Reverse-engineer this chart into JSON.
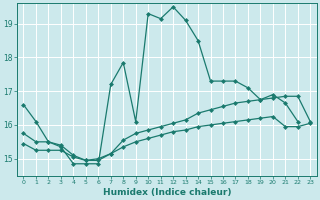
{
  "xlabel": "Humidex (Indice chaleur)",
  "bg_color": "#cce9ec",
  "grid_color": "#ffffff",
  "line_color": "#1a7a6e",
  "xlim": [
    -0.5,
    23.5
  ],
  "ylim": [
    14.5,
    19.6
  ],
  "yticks": [
    15,
    16,
    17,
    18,
    19
  ],
  "xticks": [
    0,
    1,
    2,
    3,
    4,
    5,
    6,
    7,
    8,
    9,
    10,
    11,
    12,
    13,
    14,
    15,
    16,
    17,
    18,
    19,
    20,
    21,
    22,
    23
  ],
  "line1_x": [
    0,
    1,
    2,
    3,
    4,
    5,
    6,
    7,
    8,
    9,
    10,
    11,
    12,
    13,
    14,
    15,
    16,
    17,
    18,
    19,
    20,
    21,
    22
  ],
  "line1_y": [
    16.6,
    16.1,
    15.5,
    15.35,
    14.85,
    14.85,
    14.85,
    17.2,
    17.85,
    16.1,
    19.3,
    19.15,
    19.5,
    19.1,
    18.5,
    17.3,
    17.3,
    17.3,
    17.1,
    16.75,
    16.9,
    16.65,
    16.1
  ],
  "line2_x": [
    0,
    1,
    2,
    3,
    4,
    5,
    6,
    7,
    8,
    9,
    10,
    11,
    12,
    13,
    14,
    15,
    16,
    17,
    18,
    19,
    20,
    21,
    22,
    23
  ],
  "line2_y": [
    15.75,
    15.5,
    15.5,
    15.4,
    15.1,
    14.95,
    14.95,
    15.15,
    15.55,
    15.75,
    15.85,
    15.95,
    16.05,
    16.15,
    16.35,
    16.45,
    16.55,
    16.65,
    16.7,
    16.75,
    16.8,
    16.85,
    16.85,
    16.1
  ],
  "line3_x": [
    0,
    1,
    2,
    3,
    4,
    5,
    6,
    7,
    8,
    9,
    10,
    11,
    12,
    13,
    14,
    15,
    16,
    17,
    18,
    19,
    20,
    21,
    22,
    23
  ],
  "line3_y": [
    15.45,
    15.25,
    15.25,
    15.25,
    15.05,
    14.95,
    15.0,
    15.15,
    15.35,
    15.5,
    15.6,
    15.7,
    15.8,
    15.85,
    15.95,
    16.0,
    16.05,
    16.1,
    16.15,
    16.2,
    16.25,
    15.95,
    15.95,
    16.05
  ]
}
